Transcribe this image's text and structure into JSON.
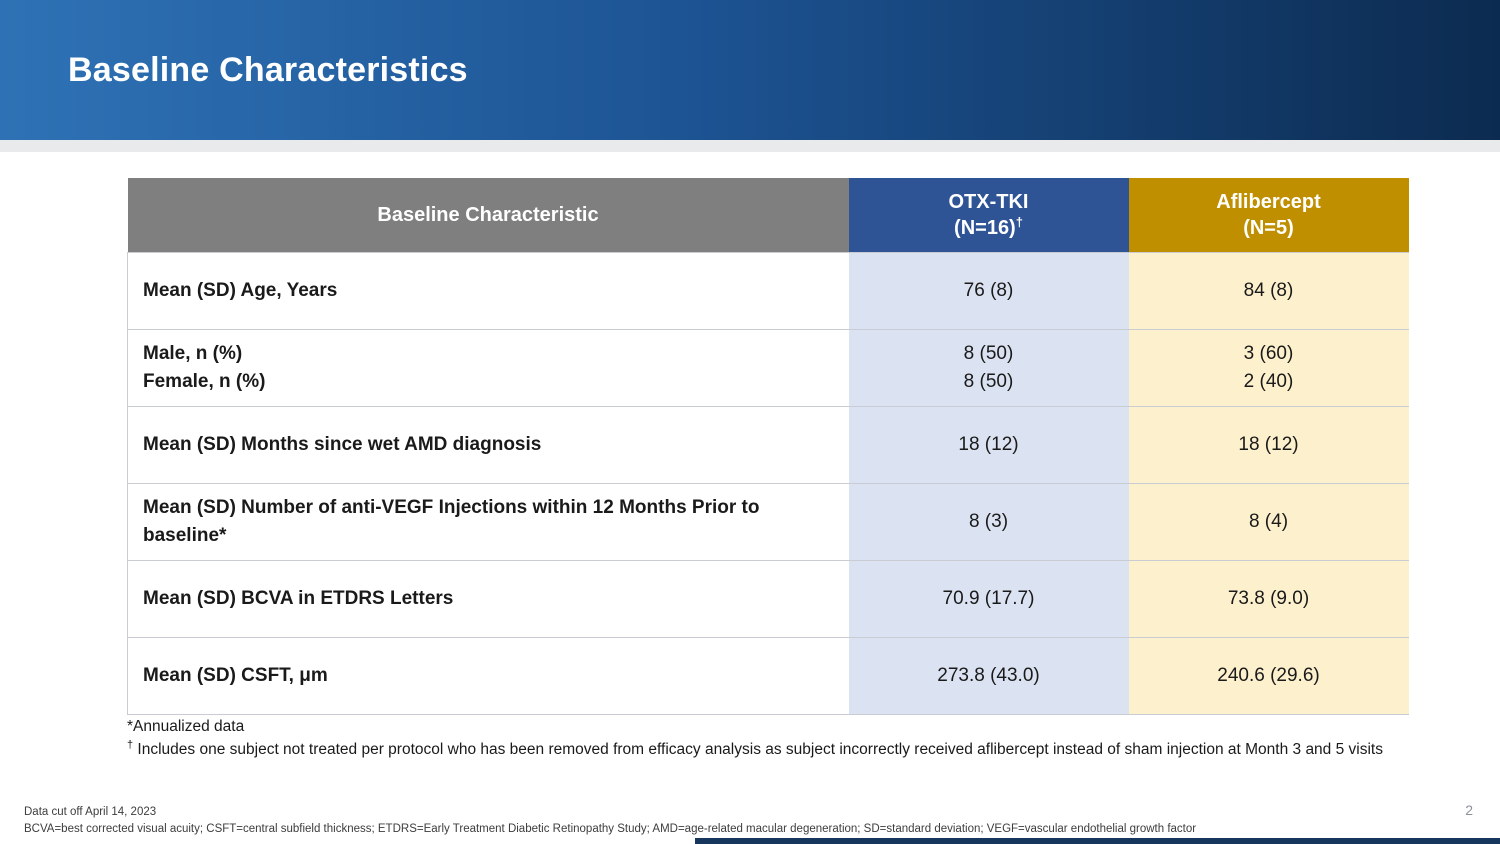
{
  "colors": {
    "banner_gradient_start": "#2e72b5",
    "banner_gradient_end": "#0c2b50",
    "subheader_strip": "#e9eaeb",
    "header_characteristic_bg": "#7f7f7f",
    "header_otx_bg": "#2f5496",
    "header_aflibercept_bg": "#bf8f00",
    "otx_column_bg": "#dbe2f1",
    "aflibercept_column_bg": "#fdf0cd",
    "bottom_bar": "#17365d"
  },
  "slide": {
    "title": "Baseline Characteristics",
    "page_number": "2"
  },
  "table": {
    "columns": {
      "characteristic": "Baseline Characteristic",
      "otx_name": "OTX-TKI",
      "otx_n": "(N=16)",
      "otx_dagger": "†",
      "aflibercept_name": "Aflibercept",
      "aflibercept_n": "(N=5)"
    },
    "rows": [
      {
        "label": "Mean (SD) Age, Years",
        "otx": "76 (8)",
        "aflibercept": "84 (8)"
      },
      {
        "label": "Male, n (%)\nFemale, n (%)",
        "otx": "8 (50)\n8 (50)",
        "aflibercept": "3 (60)\n2 (40)"
      },
      {
        "label": "Mean (SD) Months since wet AMD diagnosis",
        "otx": "18 (12)",
        "aflibercept": "18 (12)"
      },
      {
        "label": "Mean (SD) Number of anti-VEGF Injections within 12 Months Prior to baseline*",
        "otx": "8 (3)",
        "aflibercept": "8 (4)"
      },
      {
        "label": "Mean (SD) BCVA in ETDRS Letters",
        "otx": "70.9 (17.7)",
        "aflibercept": "73.8 (9.0)"
      },
      {
        "label": "Mean (SD) CSFT, μm",
        "otx": "273.8 (43.0)",
        "aflibercept": "240.6 (29.6)"
      }
    ]
  },
  "footnotes": {
    "asterisk": "*Annualized data",
    "dagger_symbol": "†",
    "dagger_text": " Includes one subject not treated per protocol who has been removed from efficacy analysis as subject incorrectly received aflibercept instead of sham injection at Month 3 and 5 visits"
  },
  "footer": {
    "line1": "Data cut off April 14, 2023",
    "line2": "BCVA=best corrected visual acuity; CSFT=central subfield thickness; ETDRS=Early Treatment Diabetic Retinopathy Study; AMD=age-related macular degeneration; SD=standard deviation; VEGF=vascular endothelial growth factor"
  }
}
